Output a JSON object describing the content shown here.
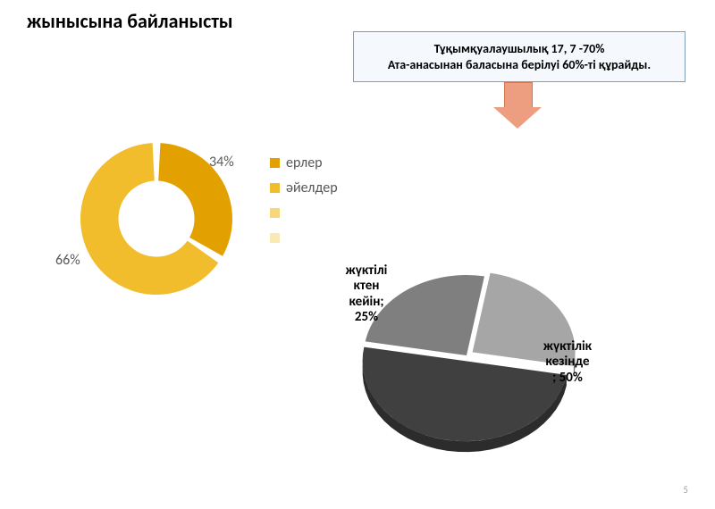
{
  "title": "жынысына байланысты",
  "callout": {
    "line1": "Тұқымқуалаушылық 17, 7 -70%",
    "line2": "Ата-анасынан баласына берілуі 60%-ті құрайды.",
    "box_bg": "#f5f8fd",
    "box_border": "#7f9db9",
    "arrow_fill": "#ed9d80",
    "arrow_border": "#d47651"
  },
  "donut": {
    "type": "donut",
    "slices": [
      {
        "label": "34%",
        "value": 34,
        "color": "#e2a100"
      },
      {
        "label": "66%",
        "value": 66,
        "color": "#f2bd2c"
      }
    ],
    "inner_radius_ratio": 0.5,
    "start_angle_deg": -90,
    "gap_deg": 6,
    "bg": "#ffffff"
  },
  "legend": {
    "items": [
      {
        "label": "ерлер",
        "color": "#e2a100"
      },
      {
        "label": "әйелдер",
        "color": "#f2bd2c"
      },
      {
        "label": "",
        "color": "#f7d77a"
      },
      {
        "label": "",
        "color": "#fbe9b5"
      }
    ],
    "text_color": "#595959",
    "fontsize": 16
  },
  "pie": {
    "type": "pie-3d-exploded",
    "slices": [
      {
        "label": "жүктілік\nкезінде\n; 50%",
        "value": 50,
        "color": "#404040",
        "explode": 0.07
      },
      {
        "label": "жүктілі\nктен\nкейін;\n25%",
        "value": 25,
        "color": "#7f7f7f",
        "explode": 0.0
      },
      {
        "label": "",
        "value": 25,
        "color": "#a6a6a6",
        "explode": 0.07
      }
    ],
    "start_angle_deg": 10,
    "depth": 12,
    "bg": "#ffffff"
  },
  "label_positions": {
    "donut_a": "34%",
    "donut_b": "66%",
    "pie_0": "жүктілік\nкезінде\n; 50%",
    "pie_1": "жүктілі\nктен\nкейін;\n25%"
  },
  "page_number": "5"
}
